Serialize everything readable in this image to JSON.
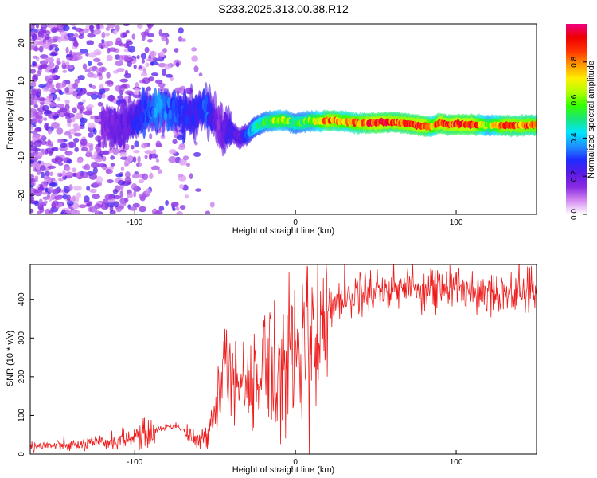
{
  "title": "S233.2025.313.00.38.R12",
  "chart_data": [
    {
      "type": "heatmap",
      "xlabel": "Height of straight line (km)",
      "ylabel": "Frequency (Hz)",
      "xlim": [
        -165,
        150
      ],
      "ylim": [
        -25,
        25
      ],
      "xticks": [
        "-100",
        "0",
        "100"
      ],
      "yticks": [
        "-20",
        "-10",
        "0",
        "10",
        "20"
      ],
      "colorbar": {
        "label": "Normalized spectral amplitude",
        "ticks": [
          "0.0",
          "0.2",
          "0.4",
          "0.6",
          "0.8"
        ],
        "range": [
          0,
          1
        ],
        "colors": [
          "#ffffff",
          "#d58cf0",
          "#8a2be2",
          "#5a1ae6",
          "#1e2bff",
          "#1e90ff",
          "#00e5ff",
          "#19e67a",
          "#33ff00",
          "#b4ff00",
          "#ffee00",
          "#ff9900",
          "#ff3300",
          "#ee0000",
          "#f00080"
        ]
      },
      "ridge": {
        "x": [
          -120,
          -105,
          -95,
          -85,
          -75,
          -65,
          -55,
          -48,
          -40,
          -35,
          -30,
          -25,
          -20,
          -15,
          -10,
          -5,
          0,
          5,
          10,
          15,
          20,
          30,
          40,
          50,
          60,
          70,
          80,
          85,
          90,
          95,
          100,
          110,
          120,
          130,
          150
        ],
        "freq": [
          -2,
          -1.5,
          1,
          3,
          2,
          1.5,
          3,
          -2,
          -3,
          -5,
          -4,
          -2,
          -1,
          -0.5,
          -0.3,
          -0.4,
          -1.2,
          -0.8,
          -0.5,
          -0.6,
          -0.4,
          -0.6,
          -1,
          -1,
          -0.8,
          -1.2,
          -1.8,
          -2,
          -1,
          -1.5,
          -1.4,
          -1.5,
          -1.6,
          -1.7,
          -1.6
        ],
        "amplitude": [
          0.15,
          0.2,
          0.3,
          0.35,
          0.3,
          0.25,
          0.3,
          0.15,
          0.25,
          0.2,
          0.3,
          0.45,
          0.5,
          0.6,
          0.65,
          0.6,
          0.5,
          0.55,
          0.6,
          0.7,
          0.85,
          0.75,
          0.8,
          0.9,
          0.85,
          0.85,
          0.9,
          0.7,
          0.9,
          0.85,
          0.9,
          0.9,
          0.6,
          0.85,
          0.8
        ]
      }
    },
    {
      "type": "line",
      "xlabel": "Height of straight line (km)",
      "ylabel": "SNR (10 * v/v)",
      "xlim": [
        -165,
        150
      ],
      "ylim": [
        0,
        490
      ],
      "xticks": [
        "-100",
        "0",
        "100"
      ],
      "yticks": [
        "0",
        "100",
        "200",
        "300",
        "400"
      ],
      "series": [
        {
          "name": "SNR",
          "color": "#ee1c1c",
          "x": [
            -165,
            -150,
            -140,
            -130,
            -120,
            -110,
            -100,
            -90,
            -85,
            -80,
            -75,
            -70,
            -65,
            -60,
            -55,
            -50,
            -48,
            -45,
            -42,
            -40,
            -38,
            -35,
            -33,
            -30,
            -27,
            -25,
            -22,
            -20,
            -18,
            -15,
            -12,
            -10,
            -8,
            -5,
            -3,
            0,
            3,
            5,
            8,
            10,
            12,
            15,
            18,
            20,
            25,
            30,
            35,
            40,
            50,
            60,
            70,
            80,
            90,
            100,
            110,
            120,
            130,
            140,
            150
          ],
          "values": [
            20,
            22,
            22,
            25,
            30,
            35,
            45,
            55,
            65,
            70,
            75,
            65,
            40,
            30,
            50,
            100,
            170,
            220,
            200,
            260,
            230,
            240,
            200,
            180,
            170,
            160,
            200,
            230,
            270,
            250,
            200,
            190,
            240,
            280,
            300,
            280,
            270,
            310,
            330,
            300,
            330,
            360,
            370,
            380,
            395,
            405,
            410,
            420,
            425,
            428,
            430,
            430,
            430,
            430,
            425,
            420,
            420,
            418,
            418
          ]
        }
      ]
    }
  ]
}
